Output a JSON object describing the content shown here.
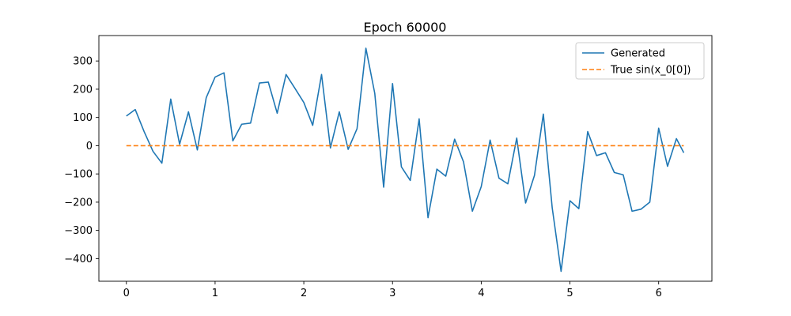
{
  "chart_data": {
    "type": "line",
    "title": "Epoch 60000",
    "xlabel": "",
    "ylabel": "",
    "xlim": [
      -0.31,
      6.6
    ],
    "ylim": [
      -480,
      390
    ],
    "xticks": [
      0,
      1,
      2,
      3,
      4,
      5,
      6
    ],
    "yticks": [
      -400,
      -300,
      -200,
      -100,
      0,
      100,
      200,
      300
    ],
    "grid": false,
    "legend_position": "upper right",
    "series": [
      {
        "name": "Generated",
        "color": "#1f77b4",
        "style": "solid",
        "x": [
          0,
          0.1,
          0.2,
          0.3,
          0.4,
          0.5,
          0.6,
          0.7,
          0.8,
          0.9,
          1.0,
          1.1,
          1.2,
          1.3,
          1.4,
          1.5,
          1.6,
          1.7,
          1.8,
          1.9,
          2.0,
          2.1,
          2.2,
          2.3,
          2.4,
          2.5,
          2.6,
          2.7,
          2.8,
          2.9,
          3.0,
          3.1,
          3.2,
          3.3,
          3.4,
          3.5,
          3.6,
          3.7,
          3.8,
          3.9,
          4.0,
          4.1,
          4.2,
          4.3,
          4.4,
          4.5,
          4.6,
          4.7,
          4.8,
          4.9,
          5.0,
          5.1,
          5.2,
          5.3,
          5.4,
          5.5,
          5.6,
          5.7,
          5.8,
          5.9,
          6.0,
          6.1,
          6.2,
          6.283
        ],
        "values": [
          105,
          128,
          50,
          -20,
          -62,
          165,
          5,
          120,
          -15,
          170,
          243,
          258,
          17,
          76,
          80,
          222,
          225,
          115,
          252,
          203,
          153,
          72,
          252,
          -8,
          120,
          -13,
          60,
          345,
          185,
          -147,
          220,
          -75,
          -123,
          95,
          -255,
          -83,
          -108,
          23,
          -57,
          -232,
          -145,
          20,
          -115,
          -135,
          27,
          -203,
          -105,
          112,
          -220,
          -445,
          -195,
          -223,
          50,
          -35,
          -25,
          -95,
          -103,
          -232,
          -225,
          -200,
          62,
          -73,
          25,
          -25
        ]
      },
      {
        "name": "True sin(x_0[0])",
        "color": "#ff7f0e",
        "style": "dashed",
        "x": [
          0,
          6.283
        ],
        "values": [
          0,
          0
        ]
      }
    ]
  }
}
